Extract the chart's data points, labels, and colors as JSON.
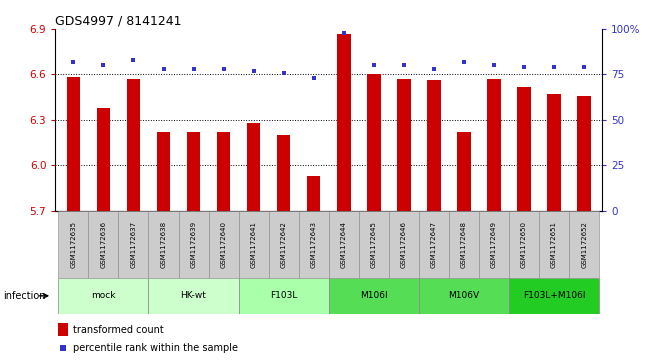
{
  "title": "GDS4997 / 8141241",
  "samples": [
    "GSM1172635",
    "GSM1172636",
    "GSM1172637",
    "GSM1172638",
    "GSM1172639",
    "GSM1172640",
    "GSM1172641",
    "GSM1172642",
    "GSM1172643",
    "GSM1172644",
    "GSM1172645",
    "GSM1172646",
    "GSM1172647",
    "GSM1172648",
    "GSM1172649",
    "GSM1172650",
    "GSM1172651",
    "GSM1172652"
  ],
  "bar_values": [
    6.58,
    6.38,
    6.57,
    6.22,
    6.22,
    6.22,
    6.28,
    6.2,
    5.93,
    6.87,
    6.6,
    6.57,
    6.56,
    6.22,
    6.57,
    6.52,
    6.47,
    6.46
  ],
  "percentile_values": [
    82,
    80,
    83,
    78,
    78,
    78,
    77,
    76,
    73,
    98,
    80,
    80,
    78,
    82,
    80,
    79,
    79,
    79
  ],
  "ylim_left": [
    5.7,
    6.9
  ],
  "ylim_right": [
    0,
    100
  ],
  "yticks_left": [
    5.7,
    6.0,
    6.3,
    6.6,
    6.9
  ],
  "yticks_right": [
    0,
    25,
    50,
    75,
    100
  ],
  "bar_color": "#cc0000",
  "dot_color": "#3333cc",
  "dotted_line_values": [
    6.6,
    6.3,
    6.0
  ],
  "groups": [
    {
      "label": "mock",
      "start": 0,
      "end": 2,
      "color": "#ccffcc"
    },
    {
      "label": "HK-wt",
      "start": 3,
      "end": 5,
      "color": "#ccffcc"
    },
    {
      "label": "F103L",
      "start": 6,
      "end": 8,
      "color": "#aaffaa"
    },
    {
      "label": "M106I",
      "start": 9,
      "end": 11,
      "color": "#55dd55"
    },
    {
      "label": "M106V",
      "start": 12,
      "end": 14,
      "color": "#55dd55"
    },
    {
      "label": "F103L+M106I",
      "start": 15,
      "end": 17,
      "color": "#22cc22"
    }
  ],
  "infection_label": "infection",
  "legend_bar_label": "transformed count",
  "legend_dot_label": "percentile rank within the sample",
  "bar_width": 0.45,
  "tick_label_color_left": "#cc0000",
  "tick_label_color_right": "#3333cc",
  "sample_box_color": "#cccccc",
  "sample_box_edge": "#888888",
  "group_box_edge": "#888888"
}
